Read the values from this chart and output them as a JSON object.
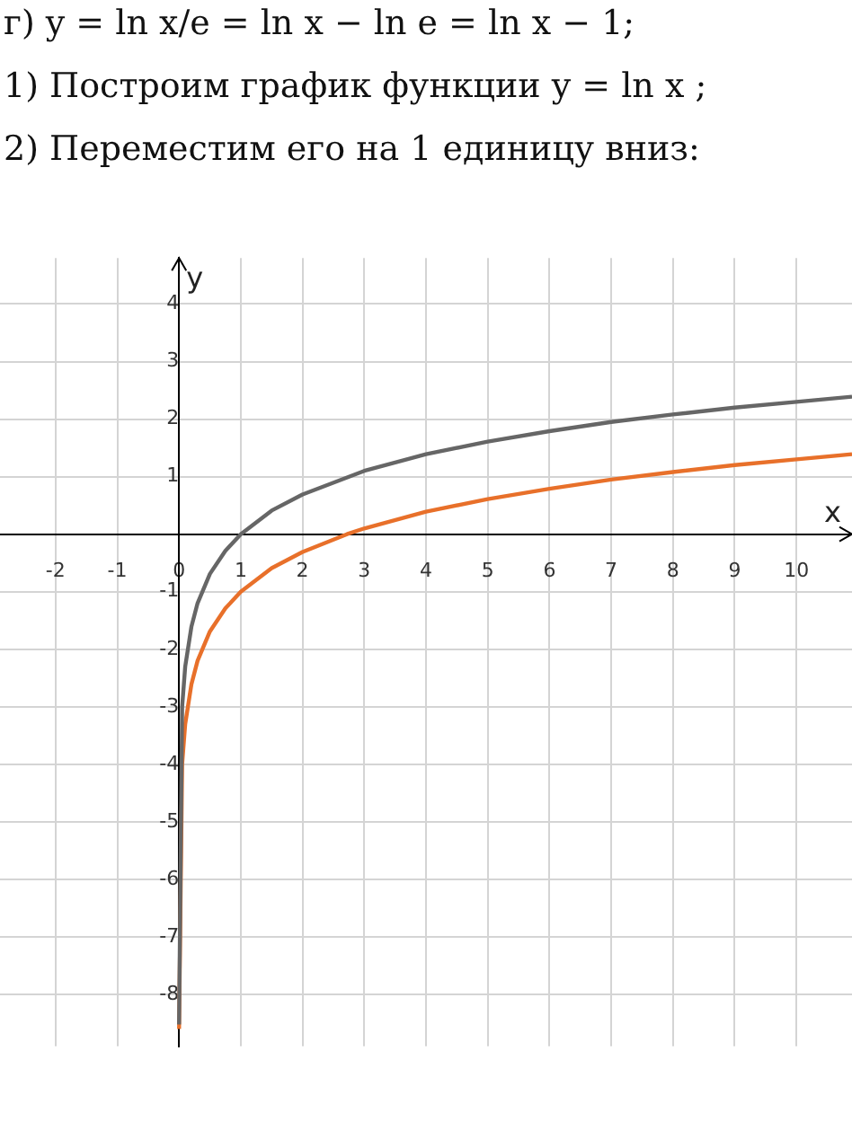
{
  "chart_data": {
    "type": "line",
    "title": "г) y = ln x/e = ln x − ln e = ln x − 1;",
    "annotations": [
      "1) Построим график функции y = ln x ;",
      "2) Переместим его на 1 единицу вниз:"
    ],
    "xlabel": "x",
    "ylabel": "y",
    "xlim": [
      -2.9,
      10.9
    ],
    "ylim": [
      -8.9,
      4.8
    ],
    "xticks": [
      -2,
      -1,
      0,
      1,
      2,
      3,
      4,
      5,
      6,
      7,
      8,
      9,
      10
    ],
    "yticks": [
      -8,
      -7,
      -6,
      -5,
      -4,
      -3,
      -2,
      -1,
      1,
      2,
      3,
      4
    ],
    "grid": true,
    "marker": "none",
    "line_style": "solid",
    "legend": false,
    "series": [
      {
        "color": "#666666",
        "x": [
          0.0002,
          0.05,
          0.1,
          0.2,
          0.3,
          0.5,
          0.75,
          1,
          1.5,
          2,
          3,
          4,
          5,
          6,
          7,
          8,
          9,
          10,
          10.9
        ],
        "values": [
          -8.52,
          -3.0,
          -2.3,
          -1.61,
          -1.2,
          -0.69,
          -0.29,
          0,
          0.41,
          0.69,
          1.1,
          1.39,
          1.61,
          1.79,
          1.95,
          2.08,
          2.2,
          2.3,
          2.39
        ]
      },
      {
        "color": "#e8702a",
        "x": [
          0.0005,
          0.05,
          0.1,
          0.2,
          0.3,
          0.5,
          0.75,
          1,
          1.5,
          2,
          2.72,
          3,
          4,
          5,
          6,
          7,
          8,
          9,
          10,
          10.9
        ],
        "values": [
          -8.6,
          -4.0,
          -3.3,
          -2.61,
          -2.2,
          -1.69,
          -1.29,
          -1,
          -0.59,
          -0.31,
          0,
          0.1,
          0.39,
          0.61,
          0.79,
          0.95,
          1.08,
          1.2,
          1.3,
          1.39
        ]
      }
    ]
  }
}
